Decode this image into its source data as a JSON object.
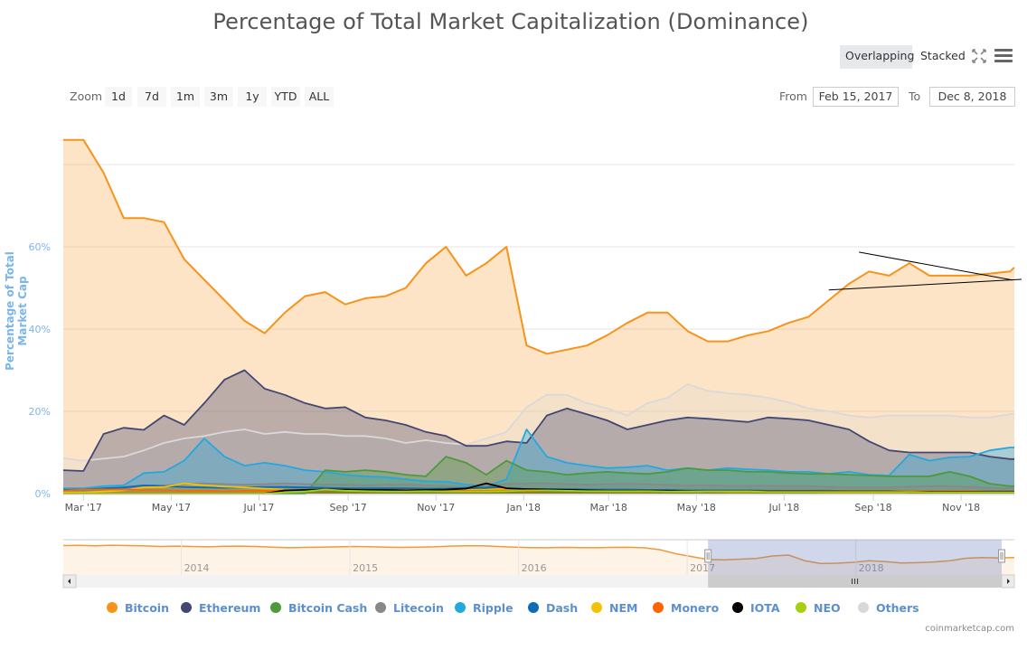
{
  "title": "Percentage of Total Market Capitalization (Dominance)",
  "mode_buttons": {
    "overlapping": "Overlapping",
    "stacked": "Stacked",
    "active": "Overlapping"
  },
  "icons": {
    "fullscreen": "fullscreen-icon",
    "menu": "hamburger-menu-icon"
  },
  "zoom": {
    "label": "Zoom",
    "buttons": [
      "1d",
      "7d",
      "1m",
      "3m",
      "1y",
      "YTD",
      "ALL"
    ]
  },
  "range": {
    "from_label": "From",
    "from_value": "Feb 15, 2017",
    "to_label": "To",
    "to_value": "Dec 8, 2018"
  },
  "credit": "coinmarketcap.com",
  "chart_data": {
    "type": "area",
    "title": "Percentage of Total Market Capitalization (Dominance)",
    "ylabel": "Percentage of Total Market Capitalization",
    "ylabel_display": "Percentage of Total Market Cap",
    "xlabel": "",
    "ylim": [
      0,
      88
    ],
    "y_ticks": [
      "0%",
      "20%",
      "40%",
      "60%"
    ],
    "y_gridlines": [
      0,
      20,
      40,
      60,
      80
    ],
    "grid": true,
    "legend_position": "bottom",
    "x_range": [
      "2017-02-15",
      "2018-12-08"
    ],
    "x_ticks": [
      {
        "label": "Mar '17",
        "date": "2017-03-01"
      },
      {
        "label": "May '17",
        "date": "2017-05-01"
      },
      {
        "label": "Jul '17",
        "date": "2017-07-01"
      },
      {
        "label": "Sep '17",
        "date": "2017-09-01"
      },
      {
        "label": "Nov '17",
        "date": "2017-11-01"
      },
      {
        "label": "Jan '18",
        "date": "2018-01-01"
      },
      {
        "label": "Mar '18",
        "date": "2018-03-01"
      },
      {
        "label": "May '18",
        "date": "2018-05-01"
      },
      {
        "label": "Jul '18",
        "date": "2018-07-01"
      },
      {
        "label": "Sep '18",
        "date": "2018-09-01"
      },
      {
        "label": "Nov '18",
        "date": "2018-11-01"
      }
    ],
    "x_days": [
      0,
      14,
      28,
      42,
      56,
      70,
      84,
      98,
      112,
      126,
      140,
      154,
      168,
      182,
      196,
      210,
      224,
      238,
      252,
      266,
      280,
      294,
      308,
      322,
      336,
      350,
      364,
      378,
      392,
      406,
      420,
      434,
      448,
      462,
      476,
      490,
      504,
      518,
      532,
      546,
      560,
      574,
      588,
      602,
      616,
      630,
      644,
      658,
      661
    ],
    "x_days_origin": "2017-02-15",
    "series": [
      {
        "name": "Others",
        "color": "#d9d9d9",
        "values": [
          8.6,
          8,
          8.5,
          9,
          10.5,
          12.3,
          13.4,
          14,
          15,
          15.6,
          14.5,
          15,
          14.5,
          14.5,
          14,
          14,
          13.4,
          12.3,
          13,
          12.3,
          11.9,
          13.4,
          15,
          21,
          24,
          24,
          22,
          20.7,
          19,
          22,
          23.3,
          26.6,
          25,
          24.4,
          24,
          23.3,
          22.2,
          20.7,
          20,
          19,
          18.5,
          19,
          19,
          19,
          19,
          18.5,
          18.5,
          19.3,
          19.3
        ]
      },
      {
        "name": "Ethereum",
        "color": "#434873",
        "values": [
          5.7,
          5.5,
          14.5,
          16,
          15.5,
          19,
          16.7,
          22,
          27.7,
          30,
          25.5,
          24,
          22,
          20.7,
          21,
          18.5,
          17.8,
          16.7,
          15,
          14,
          11.6,
          11.6,
          12.7,
          12.3,
          19,
          20.7,
          19.3,
          17.8,
          15.6,
          16.7,
          17.8,
          18.5,
          18.2,
          17.8,
          17.4,
          18.5,
          18.2,
          17.8,
          16.7,
          15.6,
          12.7,
          10.5,
          10,
          10,
          10,
          10,
          9,
          8.4,
          8.4
        ]
      },
      {
        "name": "Ripple",
        "color": "#23a8e0",
        "values": [
          1.3,
          1.3,
          1.8,
          2,
          5,
          5.3,
          8,
          13.4,
          9,
          6.8,
          7.5,
          6.8,
          5.7,
          5.3,
          4.6,
          4.2,
          4,
          3.5,
          3,
          2.9,
          2.2,
          1.8,
          3.5,
          15.6,
          9,
          7.5,
          6.8,
          6.2,
          6.4,
          6.8,
          5.7,
          6.2,
          5.7,
          6.2,
          5.9,
          5.7,
          5.3,
          5.3,
          4.8,
          5.3,
          4.6,
          4.4,
          9.5,
          8,
          8.8,
          9,
          10.5,
          11.2,
          11.2
        ]
      },
      {
        "name": "Bitcoin Cash",
        "color": "#4c9a3c",
        "values": [
          0,
          0,
          0,
          0,
          0,
          0,
          0,
          0,
          0,
          0,
          0,
          0,
          0,
          5.7,
          5.3,
          5.7,
          5.3,
          4.6,
          4.2,
          9,
          7.5,
          4.6,
          8,
          5.7,
          5.3,
          4.6,
          5,
          5.3,
          5,
          4.8,
          5.3,
          6.2,
          5.7,
          5.7,
          5.3,
          5.3,
          5,
          4.8,
          4.8,
          4.6,
          4.4,
          4.2,
          4.2,
          4.2,
          5.3,
          4.2,
          2.4,
          1.8,
          1.8
        ]
      },
      {
        "name": "Litecoin",
        "color": "#888888",
        "values": [
          1,
          1,
          1.2,
          1.5,
          2,
          2,
          2.3,
          2.5,
          2.3,
          2.2,
          2.3,
          2.5,
          2.3,
          2.2,
          2.2,
          2,
          2.2,
          2.2,
          2,
          1.8,
          1.6,
          2,
          2.3,
          2.5,
          2.5,
          2.3,
          2.2,
          2.3,
          2.4,
          2.3,
          2.1,
          2,
          2,
          1.9,
          1.9,
          1.9,
          1.8,
          1.8,
          1.6,
          1.5,
          1.5,
          1.5,
          1.7,
          1.8,
          1.8,
          1.6,
          1.4,
          1.3,
          1.3
        ]
      },
      {
        "name": "Dash",
        "color": "#0d6cb5",
        "values": [
          0.9,
          1,
          1.3,
          1.5,
          2,
          1.8,
          1.6,
          1.5,
          1.4,
          1.5,
          1.6,
          1.6,
          1.5,
          1.4,
          1.3,
          1.3,
          1.3,
          1.3,
          1.2,
          1.2,
          1.4,
          1.4,
          1.3,
          1.1,
          1.1,
          1.1,
          1.0,
          1.0,
          1.0,
          0.9,
          0.9,
          0.8,
          0.8,
          0.8,
          0.8,
          0.7,
          0.7,
          0.7,
          0.7,
          0.6,
          0.6,
          0.6,
          0.6,
          0.6,
          0.6,
          0.6,
          0.6,
          0.6,
          0.6
        ]
      },
      {
        "name": "NEM",
        "color": "#f4c105",
        "values": [
          0.3,
          0.3,
          0.5,
          0.8,
          1.5,
          1.6,
          2.5,
          2,
          1.7,
          1.5,
          1.2,
          1,
          0.9,
          0.9,
          1,
          0.9,
          0.9,
          0.8,
          0.8,
          0.8,
          0.9,
          1,
          1.2,
          1.0,
          0.9,
          0.8,
          0.7,
          0.6,
          0.6,
          0.6,
          0.5,
          0.5,
          0.5,
          0.4,
          0.4,
          0.4,
          0.4,
          0.4,
          0.3,
          0.3,
          0.3,
          0.3,
          0.3,
          0.3,
          0.3,
          0.3,
          0.3,
          0.3,
          0.3
        ]
      },
      {
        "name": "Monero",
        "color": "#ff6600",
        "values": [
          0.7,
          1,
          1,
          1,
          0.9,
          0.8,
          0.7,
          0.7,
          0.6,
          0.7,
          0.7,
          0.8,
          0.8,
          0.9,
          0.8,
          0.8,
          0.9,
          0.9,
          0.9,
          0.8,
          0.7,
          0.7,
          0.8,
          0.6,
          0.8,
          0.8,
          0.7,
          0.7,
          0.7,
          0.7,
          0.7,
          0.6,
          0.6,
          0.6,
          0.6,
          0.6,
          0.6,
          0.6,
          0.6,
          0.6,
          0.6,
          0.6,
          0.6,
          0.6,
          0.6,
          0.6,
          0.5,
          0.5,
          0.5
        ]
      },
      {
        "name": "IOTA",
        "color": "#000000",
        "values": [
          0,
          0,
          0,
          0,
          0,
          0,
          0,
          0,
          0,
          0,
          0,
          0.8,
          0.9,
          1,
          1,
          0.9,
          0.9,
          0.8,
          0.9,
          1,
          1.2,
          2.5,
          1.3,
          1.1,
          1,
          0.9,
          0.8,
          0.7,
          0.7,
          0.7,
          0.7,
          0.6,
          0.5,
          0.5,
          0.5,
          0.5,
          0.5,
          0.5,
          0.5,
          0.5,
          0.5,
          0.5,
          0.4,
          0.4,
          0.4,
          0.4,
          0.4,
          0.4,
          0.4
        ]
      },
      {
        "name": "NEO",
        "color": "#a4d010",
        "values": [
          0,
          0,
          0,
          0,
          0,
          0,
          0,
          0,
          0,
          0,
          0,
          0.3,
          0.5,
          1,
          0.7,
          0.6,
          0.5,
          0.5,
          0.6,
          0.5,
          0.5,
          0.5,
          0.6,
          0.8,
          0.8,
          0.7,
          0.6,
          0.6,
          0.6,
          0.6,
          0.5,
          0.5,
          0.5,
          0.5,
          0.5,
          0.4,
          0.4,
          0.4,
          0.4,
          0.4,
          0.4,
          0.4,
          0.4,
          0.3,
          0.3,
          0.3,
          0.3,
          0.3,
          0.3
        ]
      },
      {
        "name": "Bitcoin",
        "color": "#f7931a",
        "values": [
          86,
          86,
          78,
          67,
          67,
          66,
          57,
          52,
          47,
          42,
          39,
          44,
          48,
          49,
          46,
          47.5,
          48,
          50,
          56,
          60,
          53,
          56,
          60,
          36,
          34,
          35,
          36,
          38.5,
          41.5,
          44,
          44,
          39.5,
          37,
          37,
          38.5,
          39.5,
          41.5,
          43,
          47,
          51,
          54,
          53,
          56,
          53,
          53,
          53,
          53.5,
          54,
          55
        ]
      }
    ],
    "legend_order": [
      "Bitcoin",
      "Ethereum",
      "Bitcoin Cash",
      "Litecoin",
      "Ripple",
      "Dash",
      "NEM",
      "Monero",
      "IOTA",
      "NEO",
      "Others"
    ],
    "annotations": [
      {
        "type": "trendline",
        "from": {
          "date": "2018-08-22",
          "value": 58.7
        },
        "to": {
          "date": "2018-12-07",
          "value": 51.9
        }
      },
      {
        "type": "trendline",
        "from": {
          "date": "2018-08-01",
          "value": 49.5
        },
        "to": {
          "date": "2018-12-13",
          "value": 52.1
        }
      }
    ],
    "navigator": {
      "series_name": "Bitcoin",
      "x_ticks": [
        "2014",
        "2015",
        "2016",
        "2017",
        "2018"
      ],
      "years_span": [
        2013.3,
        2018.94
      ],
      "selected_range": [
        "2017-02-15",
        "2018-12-08"
      ],
      "values": [
        93,
        93.5,
        92,
        94,
        93,
        92,
        90,
        91,
        90,
        89,
        90.5,
        91,
        90,
        88,
        86,
        87,
        88,
        89,
        90,
        89.5,
        88,
        87,
        88,
        89,
        91,
        92,
        92,
        90,
        88,
        86.5,
        86,
        87,
        86.5,
        86,
        87,
        87.5,
        86,
        80,
        67,
        58,
        49,
        48,
        50,
        52,
        60,
        63,
        45,
        36,
        37,
        40,
        45,
        42,
        38,
        39,
        41,
        45,
        53,
        55,
        54,
        55
      ]
    }
  }
}
